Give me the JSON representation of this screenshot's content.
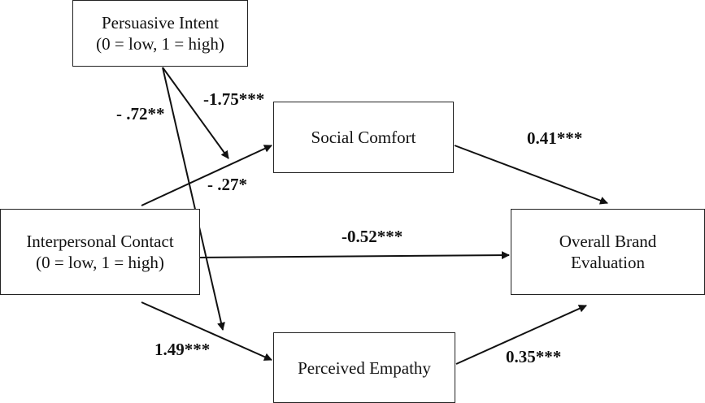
{
  "nodes": {
    "persuasive_intent": {
      "title": "Persuasive Intent",
      "subtitle": "(0 = low, 1 = high)"
    },
    "interpersonal_contact": {
      "title": "Interpersonal Contact",
      "subtitle": "(0 = low, 1 = high)"
    },
    "social_comfort": {
      "title": "Social Comfort"
    },
    "perceived_empathy": {
      "title": "Perceived Empathy"
    },
    "overall_brand_evaluation": {
      "line1": "Overall Brand",
      "line2": "Evaluation"
    }
  },
  "paths": {
    "intent_moderation_comfort": "-1.75***",
    "intent_moderation_empathy": "- .72**",
    "contact_to_comfort": "- .27*",
    "comfort_to_evaluation": "0.41***",
    "contact_to_evaluation": "-0.52***",
    "contact_to_empathy": "1.49***",
    "empathy_to_evaluation": "0.35***"
  }
}
